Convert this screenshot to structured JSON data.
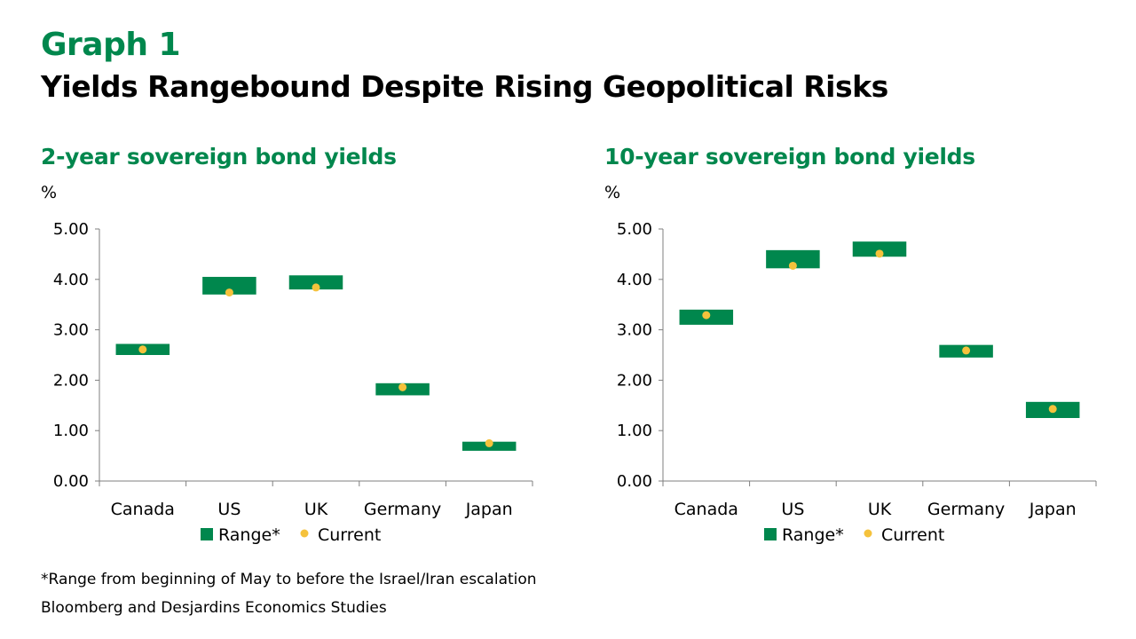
{
  "header": {
    "graph_label": "Graph 1",
    "title": "Yields Rangebound Despite Rising Geopolitical Risks"
  },
  "footer": {
    "note": "*Range from beginning of May to before the Israel/Iran escalation",
    "source": "Bloomberg and Desjardins Economics Studies"
  },
  "colors": {
    "accent": "#00874D",
    "range": "#00874D",
    "current": "#F5C23C",
    "axis": "#7F7F7F"
  },
  "chart_data": [
    {
      "type": "floating-bar-with-marker",
      "title": "2-year sovereign bond yields",
      "ylabel": "%",
      "ylim": [
        0,
        5
      ],
      "yticks": [
        "0.00",
        "1.00",
        "2.00",
        "3.00",
        "4.00",
        "5.00"
      ],
      "categories": [
        "Canada",
        "US",
        "UK",
        "Germany",
        "Japan"
      ],
      "range": [
        [
          2.5,
          2.72
        ],
        [
          3.7,
          4.05
        ],
        [
          3.8,
          4.08
        ],
        [
          1.7,
          1.94
        ],
        [
          0.6,
          0.78
        ]
      ],
      "current": [
        2.61,
        3.74,
        3.84,
        1.86,
        0.75
      ],
      "legend": [
        "Range*",
        "Current"
      ]
    },
    {
      "type": "floating-bar-with-marker",
      "title": "10-year sovereign bond yields",
      "ylabel": "%",
      "ylim": [
        0,
        5
      ],
      "yticks": [
        "0.00",
        "1.00",
        "2.00",
        "3.00",
        "4.00",
        "5.00"
      ],
      "categories": [
        "Canada",
        "US",
        "UK",
        "Germany",
        "Japan"
      ],
      "range": [
        [
          3.1,
          3.4
        ],
        [
          4.22,
          4.58
        ],
        [
          4.45,
          4.75
        ],
        [
          2.45,
          2.7
        ],
        [
          1.25,
          1.57
        ]
      ],
      "current": [
        3.29,
        4.27,
        4.51,
        2.59,
        1.43
      ],
      "legend": [
        "Range*",
        "Current"
      ]
    }
  ]
}
